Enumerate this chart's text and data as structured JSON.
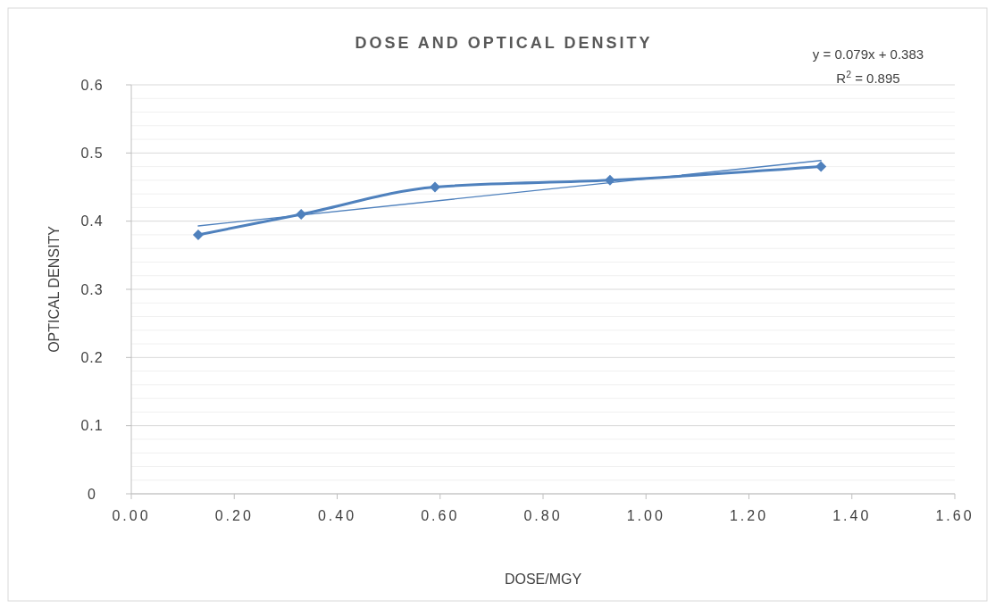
{
  "chart_data": {
    "type": "line",
    "title": "DOSE AND OPTICAL DENSITY",
    "xlabel": "DOSE/MGY",
    "ylabel": "OPTICAL DENSITY",
    "annotations": [
      "y = 0.079x + 0.383",
      "R$^{2}$ = 0.895"
    ],
    "x": [
      0.13,
      0.33,
      0.59,
      0.93,
      1.34
    ],
    "series": [
      {
        "color": "#4f81bd",
        "values": [
          0.38,
          0.41,
          0.45,
          0.46,
          0.48
        ],
        "marker": "diamond"
      },
      {
        "type": "line",
        "color": "#4f81bd",
        "x": [
          0.13,
          1.34
        ],
        "values": [
          0.393,
          0.489
        ],
        "marker": "none"
      }
    ],
    "xlim": [
      0,
      1.6
    ],
    "xticks": [
      {
        "value": 0,
        "label": "0.00"
      },
      {
        "value": 0.2,
        "label": "0.20"
      },
      {
        "value": 0.4,
        "label": "0.40"
      },
      {
        "value": 0.6,
        "label": "0.60"
      },
      {
        "value": 0.8,
        "label": "0.80"
      },
      {
        "value": 1.0,
        "label": "1.00"
      },
      {
        "value": 1.2,
        "label": "1.20"
      },
      {
        "value": 1.4,
        "label": "1.40"
      },
      {
        "value": 1.6,
        "label": "1.60"
      }
    ],
    "ylim": [
      0,
      0.6
    ],
    "yticks": [
      0,
      {
        "value": 0.02,
        "label": null
      },
      {
        "value": 0.04,
        "label": null
      },
      {
        "value": 0.06,
        "label": null
      },
      {
        "value": 0.08,
        "label": null
      },
      0.1,
      {
        "value": 0.12,
        "label": null
      },
      {
        "value": 0.14,
        "label": null
      },
      {
        "value": 0.16,
        "label": null
      },
      {
        "value": 0.18,
        "label": null
      },
      0.2,
      {
        "value": 0.22,
        "label": null
      },
      {
        "value": 0.24,
        "label": null
      },
      {
        "value": 0.26,
        "label": null
      },
      {
        "value": 0.28,
        "label": null
      },
      0.3,
      {
        "value": 0.32,
        "label": null
      },
      {
        "value": 0.34,
        "label": null
      },
      {
        "value": 0.36,
        "label": null
      },
      {
        "value": 0.38,
        "label": null
      },
      0.4,
      {
        "value": 0.42,
        "label": null
      },
      {
        "value": 0.44,
        "label": null
      },
      {
        "value": 0.46,
        "label": null
      },
      {
        "value": 0.48,
        "label": null
      },
      0.5,
      {
        "value": 0.52,
        "label": null
      },
      {
        "value": 0.54,
        "label": null
      },
      {
        "value": 0.56,
        "label": null
      },
      {
        "value": 0.58,
        "label": null
      },
      0.6
    ],
    "grid": "y"
  }
}
